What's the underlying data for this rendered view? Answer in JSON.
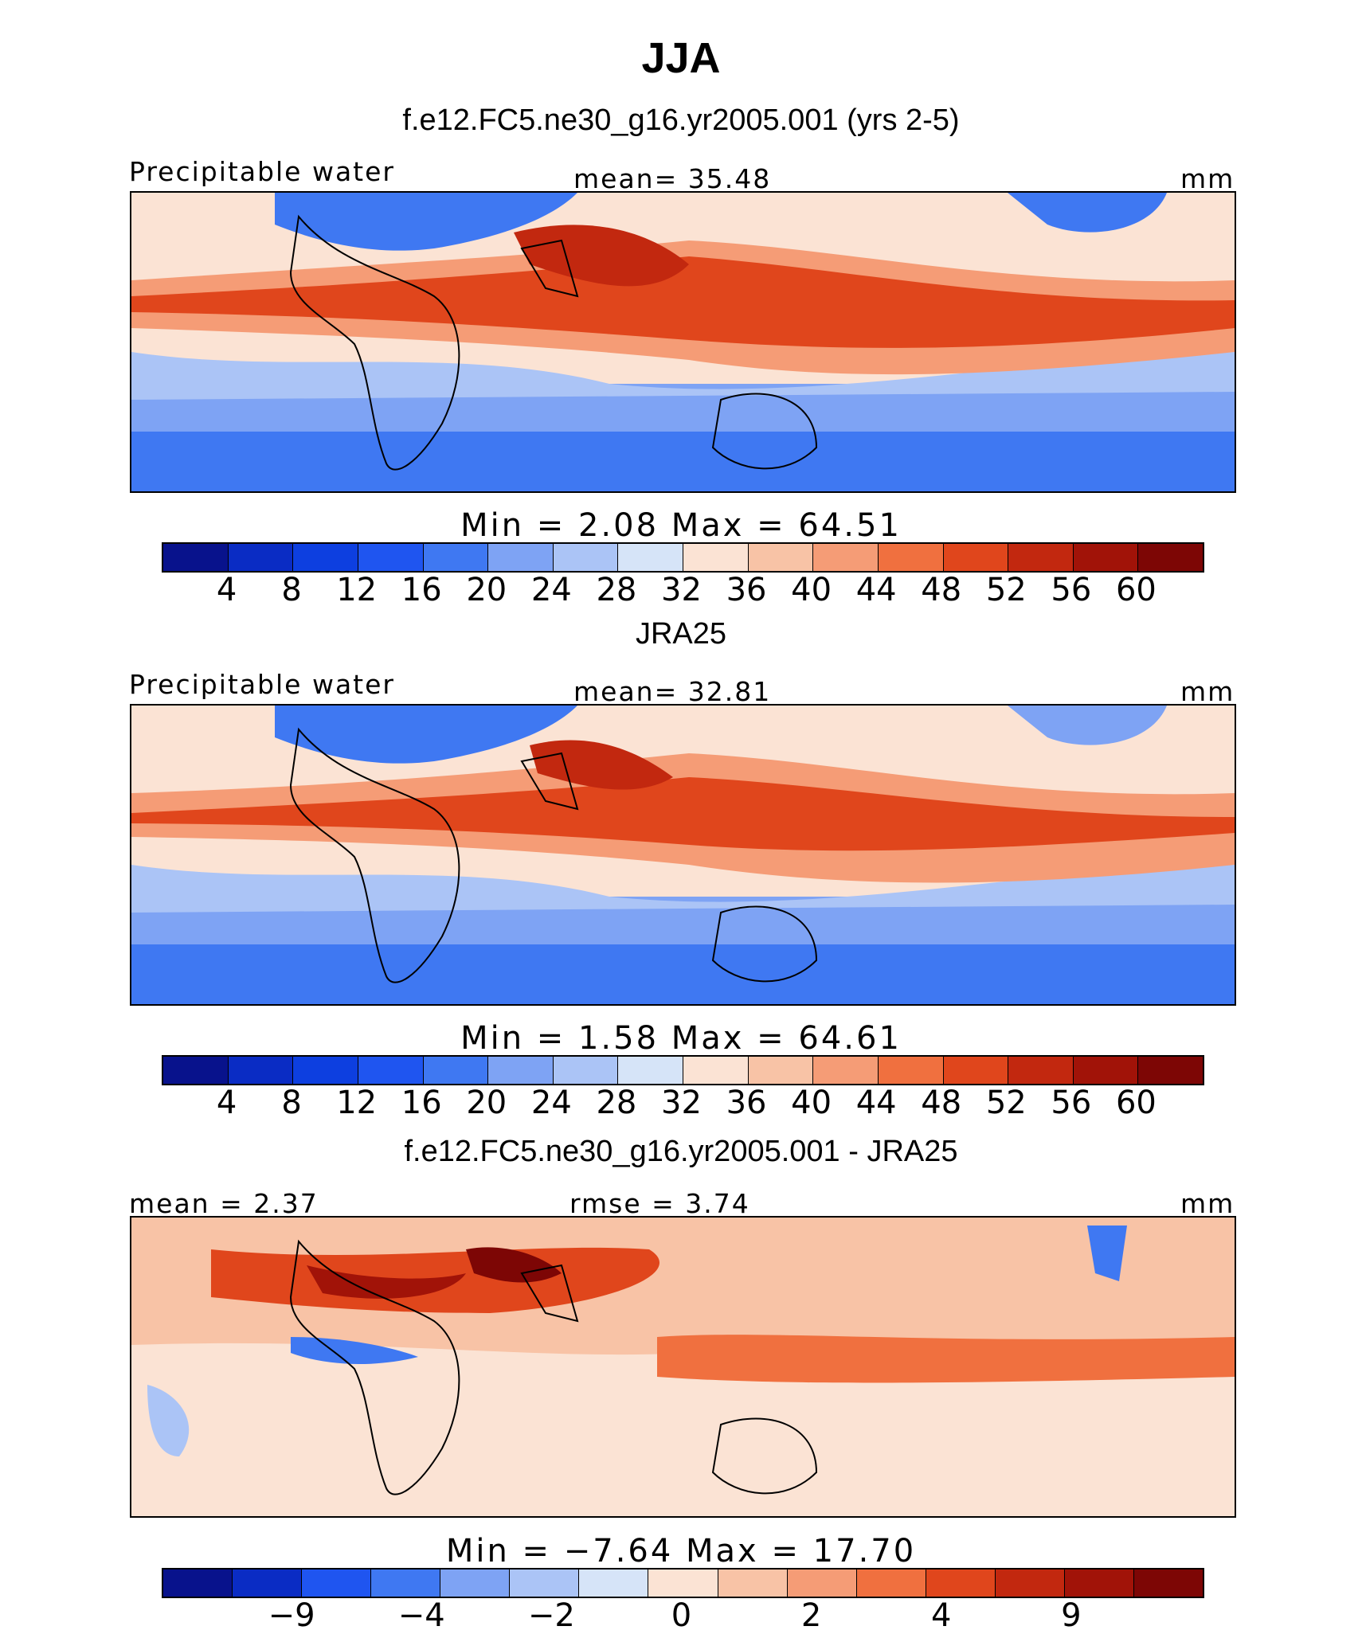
{
  "title": "JJA",
  "panels": [
    {
      "title": "f.e12.FC5.ne30_g16.yr2005.001 (yrs 2-5)",
      "left_label": "Precipitable water",
      "center_label": "mean=   35.48",
      "units": "mm",
      "minmax": "Min =    2.08 Max =   64.51",
      "colorbar_ticks": [
        "4",
        "8",
        "12",
        "16",
        "20",
        "24",
        "28",
        "32",
        "36",
        "40",
        "44",
        "48",
        "52",
        "56",
        "60"
      ]
    },
    {
      "title": "JRA25",
      "left_label": "Precipitable water",
      "center_label": "mean=   32.81",
      "units": "mm",
      "minmax": "Min =    1.58 Max =   64.61",
      "colorbar_ticks": [
        "4",
        "8",
        "12",
        "16",
        "20",
        "24",
        "28",
        "32",
        "36",
        "40",
        "44",
        "48",
        "52",
        "56",
        "60"
      ]
    },
    {
      "title": "f.e12.FC5.ne30_g16.yr2005.001 - JRA25",
      "left_label": "mean =   2.37",
      "center_label": "rmse =    3.74",
      "units": "mm",
      "minmax": "Min =  −7.64 Max =   17.70",
      "colorbar_ticks": [
        "−9",
        "−4",
        "−2",
        "0",
        "2",
        "4",
        "9"
      ]
    }
  ],
  "colors": {
    "abs_scale": [
      "#08128c",
      "#0a2cc4",
      "#0d3fe0",
      "#1f55f0",
      "#3f78f2",
      "#7ea3f4",
      "#abc4f6",
      "#d6e4f8",
      "#fbe3d4",
      "#f8c3a6",
      "#f59c76",
      "#f0703f",
      "#e0461c",
      "#c2280f",
      "#a11308",
      "#7d0605"
    ],
    "diff_scale": [
      "#08128c",
      "#0a2cc4",
      "#1f55f0",
      "#3f78f2",
      "#7ea3f4",
      "#abc4f6",
      "#d6e4f8",
      "#fbe3d4",
      "#f8c3a6",
      "#f59c76",
      "#f0703f",
      "#e0461c",
      "#c2280f",
      "#a11308",
      "#7d0605"
    ]
  }
}
